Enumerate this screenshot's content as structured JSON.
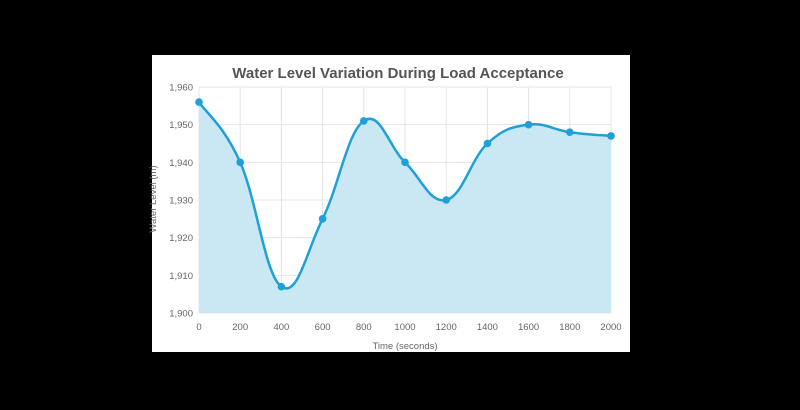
{
  "chart_data": {
    "type": "area",
    "title": "Water Level Variation During Load Acceptance",
    "xlabel": "Time (seconds)",
    "ylabel": "Water Level (m)",
    "x": [
      0,
      200,
      400,
      600,
      800,
      1000,
      1200,
      1400,
      1600,
      1800,
      2000
    ],
    "y": [
      1956,
      1940,
      1907,
      1925,
      1951,
      1940,
      1930,
      1945,
      1950,
      1948,
      1947
    ],
    "xlim": [
      0,
      2000
    ],
    "ylim": [
      1900,
      1960
    ],
    "x_ticks": [
      "0",
      "200",
      "400",
      "600",
      "800",
      "1000",
      "1200",
      "1400",
      "1600",
      "1800",
      "2000"
    ],
    "y_ticks": [
      "1,900",
      "1,910",
      "1,920",
      "1,930",
      "1,940",
      "1,950",
      "1,960"
    ],
    "grid": true,
    "smooth": true,
    "colors": {
      "line": "#1fa0d6",
      "fill": "#c9e8f4",
      "marker": "#1fa0d6"
    }
  }
}
